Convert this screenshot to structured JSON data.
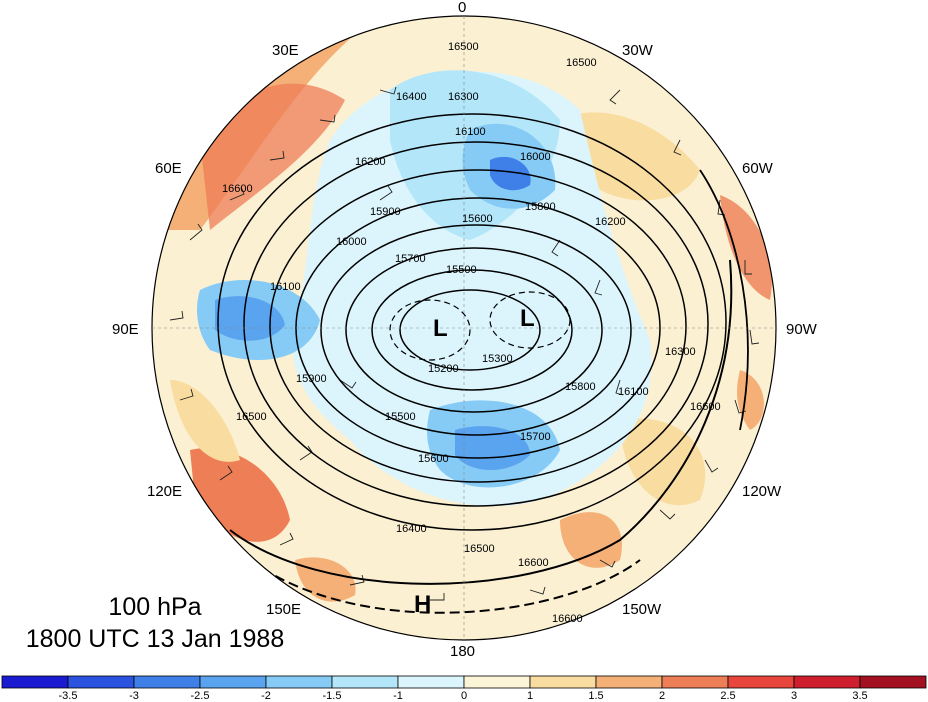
{
  "map": {
    "level_label": "100 hPa",
    "time_label": "1800 UTC 13 Jan 1988",
    "longitude_labels": [
      "0",
      "30W",
      "60W",
      "90W",
      "120W",
      "150W",
      "180",
      "150E",
      "120E",
      "90E",
      "60E",
      "30E"
    ],
    "pressure_centers": [
      "L",
      "L",
      "H"
    ],
    "contour_labels": [
      "16500",
      "16400",
      "16300",
      "16200",
      "16100",
      "16000",
      "15900",
      "15800",
      "15700",
      "15600",
      "15500",
      "15300",
      "15200",
      "16600",
      "16400",
      "16500",
      "16600",
      "16600",
      "16600",
      "16500",
      "16100",
      "16300",
      "15800",
      "15700",
      "15600",
      "15500",
      "16500",
      "16000",
      "15900",
      "16200",
      "16100"
    ]
  },
  "colorbar": {
    "tick_labels": [
      "-3.5",
      "-3",
      "-2.5",
      "-2",
      "-1.5",
      "-1",
      "0",
      "1",
      "1.5",
      "2",
      "2.5",
      "3",
      "3.5"
    ],
    "colors": [
      "#1a1ad0",
      "#2c52e0",
      "#3f7fe8",
      "#5aa3ef",
      "#86cbf5",
      "#b4e6fa",
      "#dcf5fd",
      "#fcf4d6",
      "#f9dca0",
      "#f5b078",
      "#ee7e55",
      "#e8463c",
      "#cf1f2f",
      "#a31020"
    ]
  },
  "colors": {
    "background": "#ffffff",
    "outline": "#000000",
    "negative_fill": "#a8d8f5",
    "positive_fill": "#f8e2b4"
  }
}
